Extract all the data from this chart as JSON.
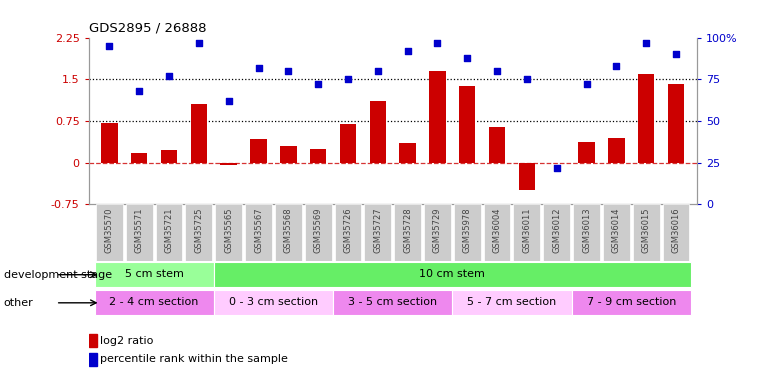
{
  "title": "GDS2895 / 26888",
  "samples": [
    "GSM35570",
    "GSM35571",
    "GSM35721",
    "GSM35725",
    "GSM35565",
    "GSM35567",
    "GSM35568",
    "GSM35569",
    "GSM35726",
    "GSM35727",
    "GSM35728",
    "GSM35729",
    "GSM35978",
    "GSM36004",
    "GSM36011",
    "GSM36012",
    "GSM36013",
    "GSM36014",
    "GSM36015",
    "GSM36016"
  ],
  "log2_ratio_full": [
    0.72,
    0.18,
    0.22,
    1.05,
    -0.04,
    0.42,
    0.3,
    0.25,
    0.7,
    1.1,
    0.35,
    1.65,
    1.38,
    0.65,
    -0.5,
    0.0,
    0.38,
    0.45,
    1.6,
    1.42
  ],
  "percentile": [
    95,
    68,
    77,
    97,
    62,
    82,
    80,
    72,
    75,
    80,
    92,
    97,
    88,
    80,
    75,
    22,
    72,
    83,
    97,
    90
  ],
  "bar_color": "#cc0000",
  "dot_color": "#0000cc",
  "left_ylim": [
    -0.75,
    2.25
  ],
  "right_ylim": [
    0,
    100
  ],
  "left_yticks": [
    -0.75,
    0.0,
    0.75,
    1.5,
    2.25
  ],
  "right_yticks": [
    0,
    25,
    50,
    75,
    100
  ],
  "hlines": [
    0.75,
    1.5
  ],
  "zero_line_color": "#cc0000",
  "hline_color": "#000000",
  "dev_stage_groups": [
    {
      "label": "5 cm stem",
      "start": 0,
      "end": 4,
      "color": "#99ff99"
    },
    {
      "label": "10 cm stem",
      "start": 4,
      "end": 20,
      "color": "#66ee66"
    }
  ],
  "other_groups": [
    {
      "label": "2 - 4 cm section",
      "start": 0,
      "end": 4,
      "color": "#ee88ee"
    },
    {
      "label": "0 - 3 cm section",
      "start": 4,
      "end": 8,
      "color": "#ffccff"
    },
    {
      "label": "3 - 5 cm section",
      "start": 8,
      "end": 12,
      "color": "#ee88ee"
    },
    {
      "label": "5 - 7 cm section",
      "start": 12,
      "end": 16,
      "color": "#ffccff"
    },
    {
      "label": "7 - 9 cm section",
      "start": 16,
      "end": 20,
      "color": "#ee88ee"
    }
  ],
  "dev_stage_label": "development stage",
  "other_label": "other",
  "legend_red": "log2 ratio",
  "legend_blue": "percentile rank within the sample",
  "bg_color": "#ffffff",
  "tick_bg_color": "#cccccc",
  "tick_label_color": "#444444"
}
